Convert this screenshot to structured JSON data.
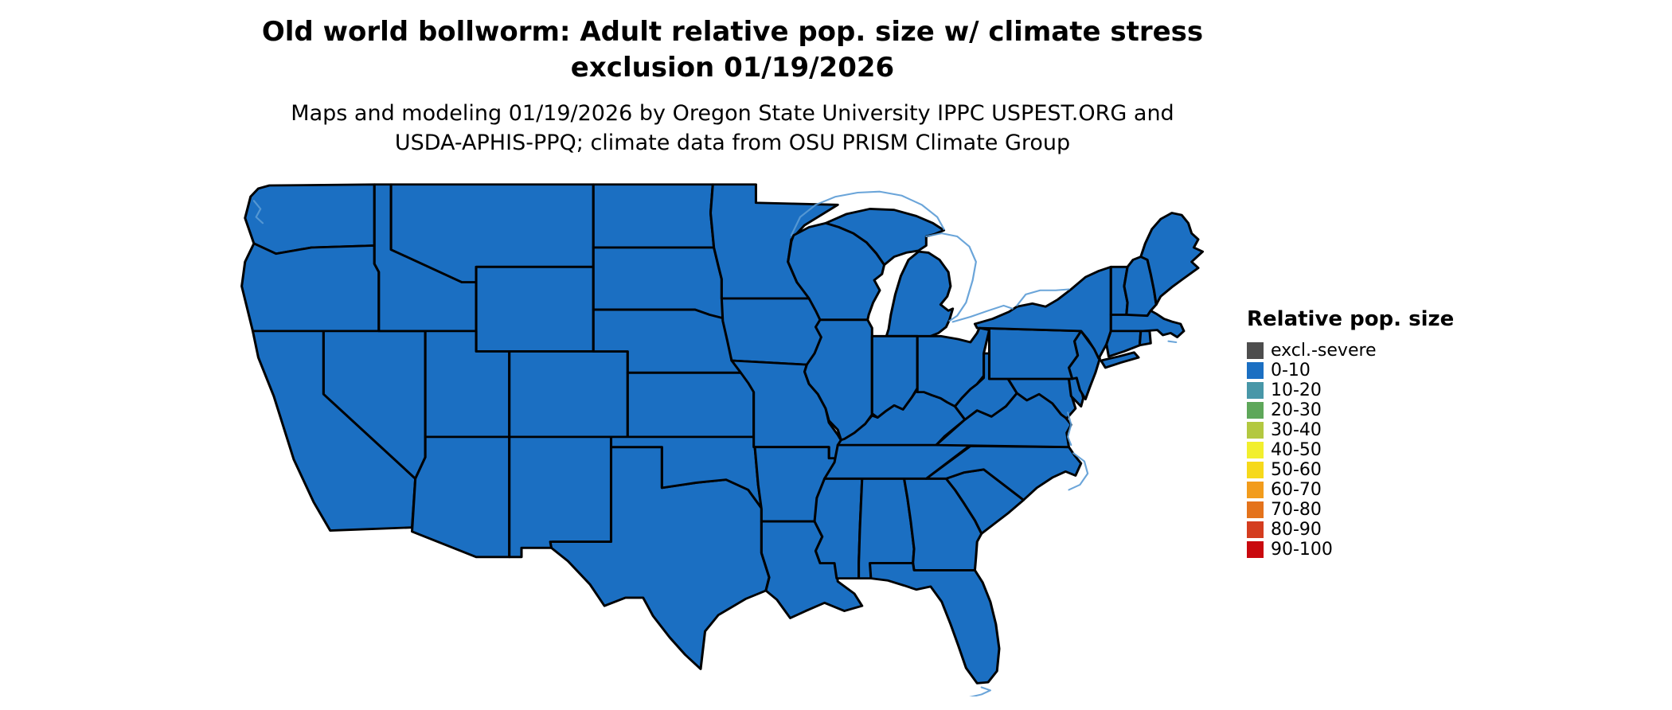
{
  "title": {
    "line1": "Old world bollworm: Adult relative pop. size w/ climate stress",
    "line2": "exclusion 01/19/2026"
  },
  "subtitle": {
    "line1": "Maps and modeling 01/19/2026 by Oregon State University IPPC USPEST.ORG and",
    "line2": "USDA-APHIS-PPQ; climate data from OSU PRISM Climate Group"
  },
  "legend": {
    "title": "Relative pop. size",
    "items": [
      {
        "label": "excl.-severe",
        "color": "#4d4d4d"
      },
      {
        "label": "0-10",
        "color": "#1b6fc2"
      },
      {
        "label": "10-20",
        "color": "#4897a8"
      },
      {
        "label": "20-30",
        "color": "#5ea75a"
      },
      {
        "label": "30-40",
        "color": "#b3c840"
      },
      {
        "label": "40-50",
        "color": "#f2ef2e"
      },
      {
        "label": "50-60",
        "color": "#f6d91b"
      },
      {
        "label": "60-70",
        "color": "#f29c1c"
      },
      {
        "label": "70-80",
        "color": "#e4731c"
      },
      {
        "label": "80-90",
        "color": "#d43d1f"
      },
      {
        "label": "90-100",
        "color": "#c9090e"
      }
    ]
  },
  "map": {
    "region": "Contiguous United States",
    "all_states_class": "0-10",
    "state_fill": "#1b6fc2",
    "state_border": "#000000",
    "water_line": "#5b9bd5",
    "states": [
      "Washington",
      "Oregon",
      "California",
      "Nevada",
      "Idaho",
      "Montana",
      "Wyoming",
      "Utah",
      "Colorado",
      "Arizona",
      "New Mexico",
      "Texas",
      "North Dakota",
      "South Dakota",
      "Nebraska",
      "Kansas",
      "Oklahoma",
      "Minnesota",
      "Iowa",
      "Missouri",
      "Arkansas",
      "Louisiana",
      "Mississippi",
      "Alabama",
      "Georgia",
      "Florida",
      "South Carolina",
      "North Carolina",
      "Tennessee",
      "Kentucky",
      "Virginia",
      "West Virginia",
      "Maryland",
      "Delaware",
      "New Jersey",
      "Pennsylvania",
      "New York",
      "Vermont",
      "New Hampshire",
      "Maine",
      "Massachusetts",
      "Connecticut",
      "Rhode Island",
      "Michigan",
      "Wisconsin",
      "Illinois",
      "Indiana",
      "Ohio"
    ]
  }
}
